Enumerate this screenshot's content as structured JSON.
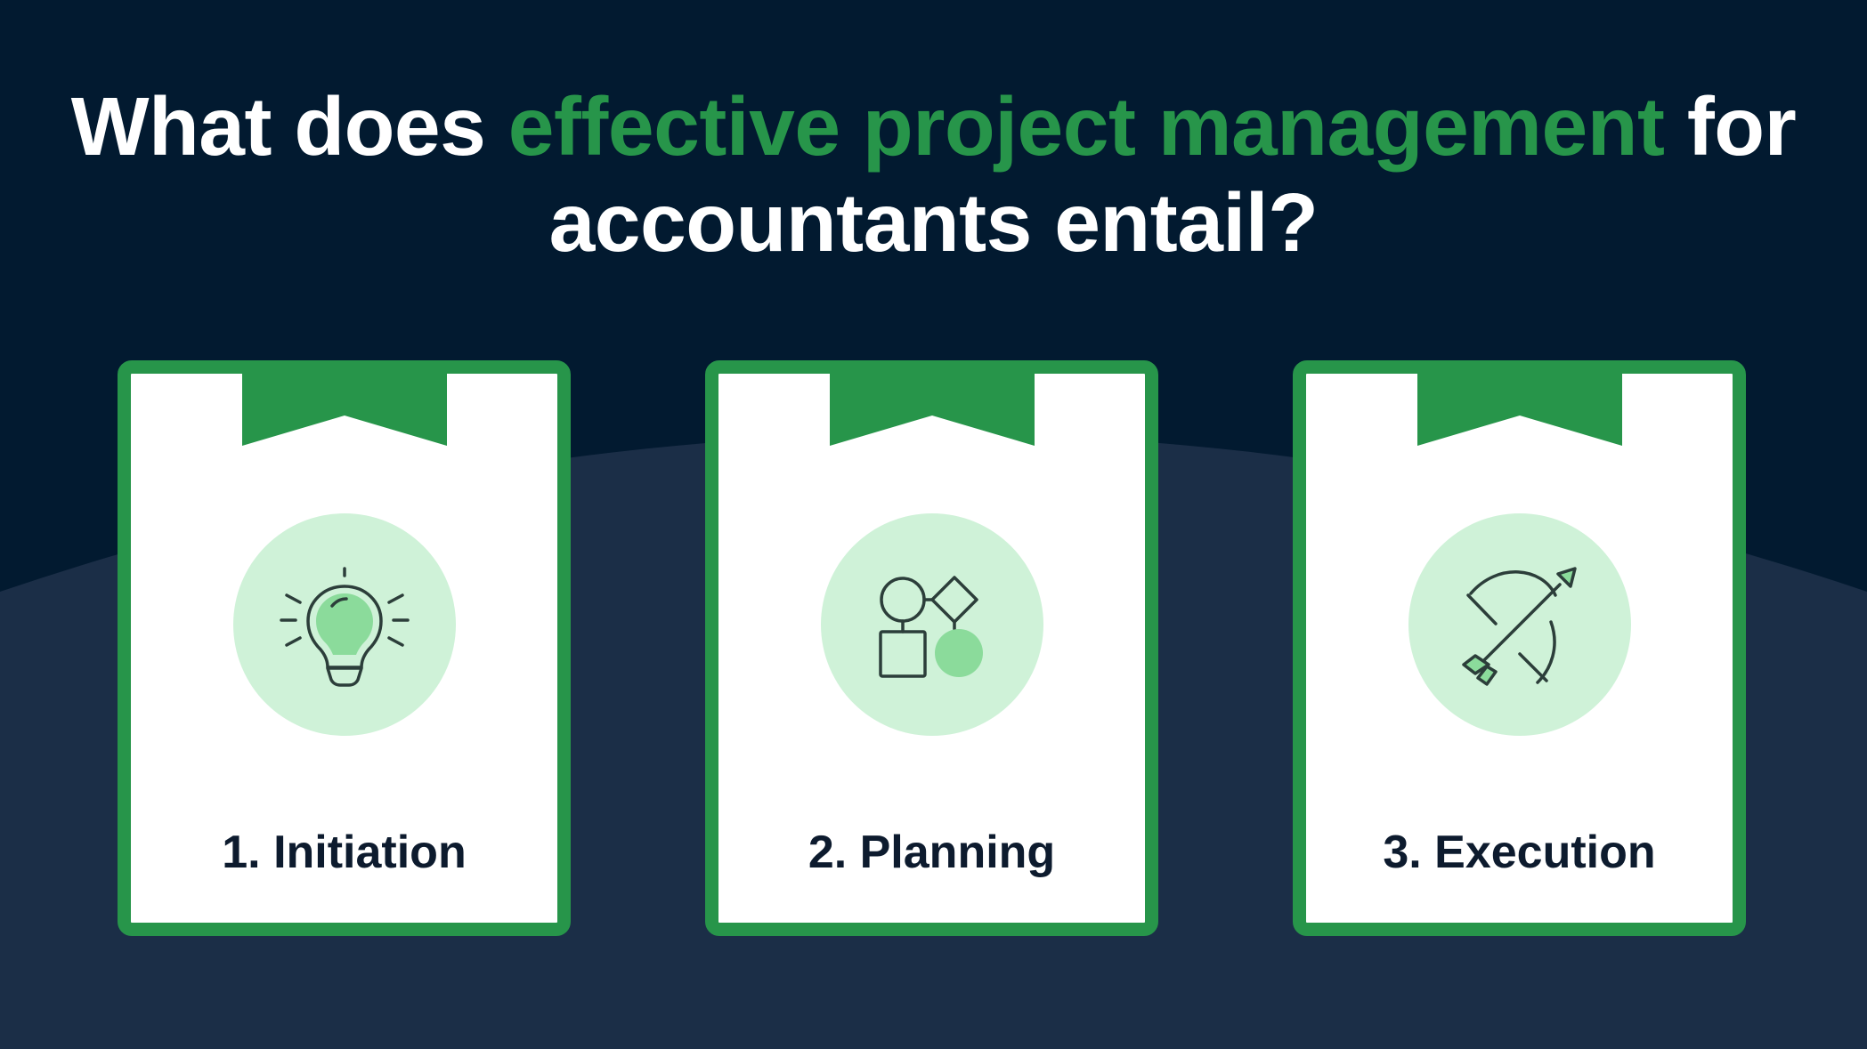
{
  "title": {
    "part1": "What does ",
    "highlight": "effective project management",
    "part2": " for accountants entail?"
  },
  "colors": {
    "background_dark": "#021a30",
    "background_arc": "#1b2e47",
    "accent_green": "#27954a",
    "icon_circle": "#cff2d8",
    "icon_fill": "#8bdb9b",
    "icon_stroke": "#2c3e3a",
    "label_text": "#0d1b2e"
  },
  "cards": [
    {
      "label": "1. Initiation",
      "icon": "lightbulb-icon"
    },
    {
      "label": "2. Planning",
      "icon": "flowchart-shapes-icon"
    },
    {
      "label": "3. Execution",
      "icon": "bow-and-arrow-icon"
    }
  ]
}
